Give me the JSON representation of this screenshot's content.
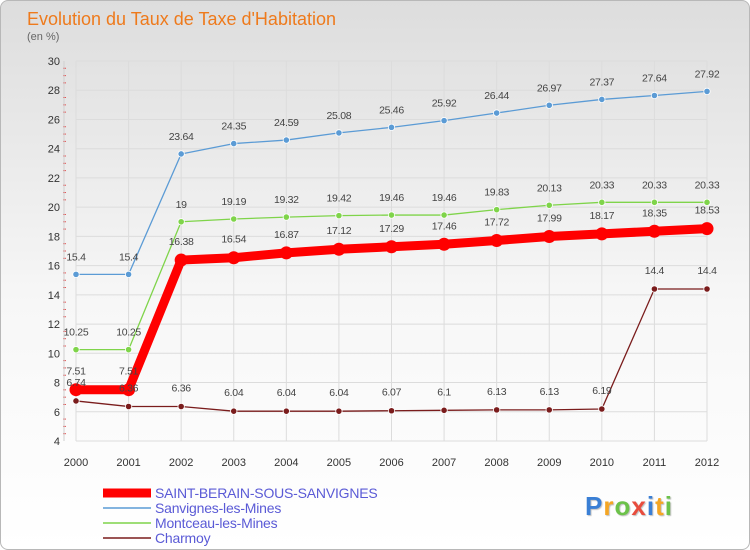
{
  "logo": {
    "text": "Proxiti",
    "colors": [
      "#3a7fd5",
      "#f5a623",
      "#6cc24a",
      "#e84c3d",
      "#3a7fd5",
      "#f5a623",
      "#6cc24a"
    ]
  },
  "chart_data": {
    "type": "line",
    "title": "Evolution du Taux de Taxe d'Habitation",
    "subtitle": "(en %)",
    "xlabel": "",
    "ylabel": "",
    "ylim": [
      4,
      30
    ],
    "yticks": [
      "4",
      "6",
      "8",
      "10",
      "12",
      "14",
      "16",
      "18",
      "20",
      "22",
      "24",
      "26",
      "28",
      "30"
    ],
    "categories": [
      "2000",
      "2001",
      "2002",
      "2003",
      "2004",
      "2005",
      "2006",
      "2007",
      "2008",
      "2009",
      "2010",
      "2011",
      "2012"
    ],
    "series": [
      {
        "name": "SAINT-BERAIN-SOUS-SANVIGNES",
        "color": "#ff0000",
        "values": [
          7.51,
          7.51,
          16.38,
          16.54,
          16.87,
          17.12,
          17.29,
          17.46,
          17.72,
          17.99,
          18.17,
          18.35,
          18.53
        ],
        "labels": [
          "7.51",
          "7.51",
          "16.38",
          "16.54",
          "16.87",
          "17.12",
          "17.29",
          "17.46",
          "17.72",
          "17.99",
          "18.17",
          "18.35",
          "18.53"
        ]
      },
      {
        "name": "Sanvignes-les-Mines",
        "color": "#5b9bd5",
        "values": [
          15.4,
          15.4,
          23.64,
          24.35,
          24.59,
          25.08,
          25.46,
          25.92,
          26.44,
          26.97,
          27.37,
          27.64,
          27.92
        ],
        "labels": [
          "15.4",
          "15.4",
          "23.64",
          "24.35",
          "24.59",
          "25.08",
          "25.46",
          "25.92",
          "26.44",
          "26.97",
          "27.37",
          "27.64",
          "27.92"
        ]
      },
      {
        "name": "Montceau-les-Mines",
        "color": "#7fd44a",
        "values": [
          10.25,
          10.25,
          19,
          19.19,
          19.32,
          19.42,
          19.46,
          19.46,
          19.83,
          20.13,
          20.33,
          20.33,
          20.33
        ],
        "labels": [
          "10.25",
          "10.25",
          "19",
          "19.19",
          "19.32",
          "19.42",
          "19.46",
          "19.46",
          "19.83",
          "20.13",
          "20.33",
          "20.33",
          "20.33"
        ]
      },
      {
        "name": "Charmoy",
        "color": "#7a1c1c",
        "values": [
          6.74,
          6.36,
          6.36,
          6.04,
          6.04,
          6.04,
          6.07,
          6.1,
          6.13,
          6.13,
          6.19,
          14.4,
          14.4
        ],
        "labels": [
          "6.74",
          "6.36",
          "6.36",
          "6.04",
          "6.04",
          "6.04",
          "6.07",
          "6.1",
          "6.13",
          "6.13",
          "6.19",
          "14.4",
          "14.4"
        ]
      }
    ],
    "legend": {
      "position": "bottom-left"
    }
  }
}
